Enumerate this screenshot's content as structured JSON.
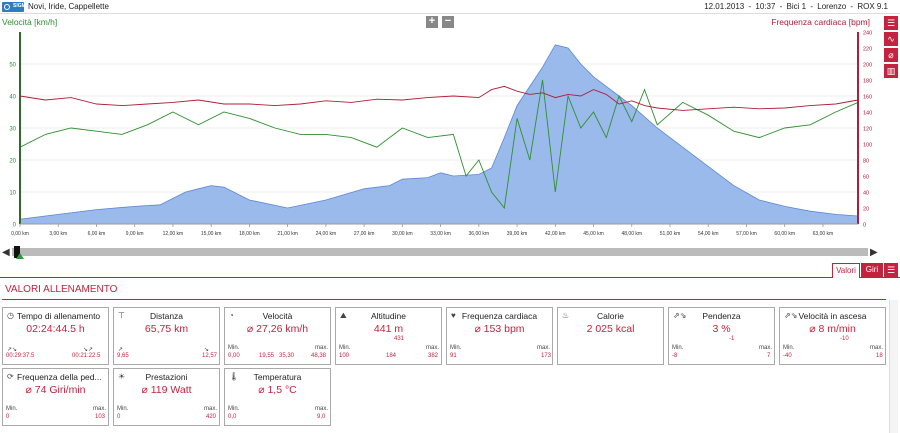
{
  "header": {
    "title": "Novi, Iride, Cappellette",
    "date": "12.01.2013",
    "time": "10:37",
    "bike": "Bici 1",
    "user": "Lorenzo",
    "device": "ROX 9.1",
    "sep": "-",
    "logo_text": "SIGMA"
  },
  "chart_data": {
    "type": "area",
    "left_axis_label": "Velocità [km/h]",
    "right_axis_label": "Frequenza cardiaca [bpm]",
    "left_ticks": [
      0,
      10,
      20,
      30,
      40,
      50
    ],
    "right_ticks": [
      0,
      20,
      40,
      60,
      80,
      100,
      120,
      140,
      160,
      180,
      200,
      220,
      240
    ],
    "x_ticks": [
      "0,00 km",
      "3,00 km",
      "6,00 km",
      "9,00 km",
      "12,00 km",
      "15,00 km",
      "18,00 km",
      "21,00 km",
      "24,00 km",
      "27,00 km",
      "30,00 km",
      "33,00 km",
      "36,00 km",
      "39,00 km",
      "42,00 km",
      "45,00 km",
      "48,00 km",
      "51,00 km",
      "54,00 km",
      "57,00 km",
      "60,00 km",
      "63,00 km"
    ],
    "xlim": [
      0,
      65.75
    ],
    "series": [
      {
        "name": "Altitudine",
        "type": "area",
        "color": "#8fb3ea",
        "x": [
          0,
          3,
          6,
          9,
          11,
          12,
          13,
          14,
          15,
          16,
          18,
          21,
          24,
          27,
          29,
          30,
          32,
          33,
          34,
          36,
          37,
          38,
          39,
          40,
          41,
          42,
          43,
          44,
          45,
          46,
          47,
          48,
          50,
          52,
          54,
          56,
          58,
          60,
          62,
          64,
          65.75
        ],
        "y": [
          15,
          30,
          45,
          55,
          60,
          80,
          100,
          110,
          120,
          115,
          75,
          50,
          75,
          110,
          120,
          140,
          145,
          160,
          150,
          155,
          175,
          270,
          370,
          430,
          490,
          560,
          550,
          500,
          460,
          430,
          400,
          370,
          300,
          240,
          180,
          120,
          75,
          55,
          40,
          30,
          25
        ]
      },
      {
        "name": "Velocità",
        "type": "line",
        "color": "#2f8f2f",
        "x": [
          0,
          2,
          4,
          6,
          8,
          10,
          12,
          14,
          16,
          18,
          20,
          22,
          24,
          26,
          28,
          30,
          32,
          34,
          35,
          36,
          37,
          38,
          39,
          40,
          41,
          42,
          43,
          44,
          45,
          46,
          47,
          48,
          49,
          50,
          52,
          54,
          56,
          58,
          60,
          62,
          64,
          65.75
        ],
        "y": [
          24,
          28,
          30,
          29,
          28,
          31,
          35,
          31,
          35,
          33,
          30,
          28,
          28,
          27,
          24,
          30,
          27,
          28,
          15,
          20,
          10,
          5,
          33,
          20,
          45,
          10,
          40,
          30,
          35,
          27,
          40,
          32,
          42,
          31,
          38,
          34,
          29,
          27,
          30,
          31,
          35,
          38
        ]
      },
      {
        "name": "Frequenza cardiaca",
        "type": "line",
        "color": "#b01d3a",
        "x": [
          0,
          2,
          4,
          6,
          8,
          10,
          12,
          14,
          16,
          18,
          20,
          22,
          24,
          26,
          28,
          30,
          32,
          34,
          36,
          37,
          38,
          39,
          40,
          41,
          42,
          43,
          44,
          45,
          46,
          47,
          48,
          49,
          50,
          52,
          54,
          56,
          58,
          60,
          62,
          64,
          65.75
        ],
        "y": [
          160,
          155,
          158,
          150,
          148,
          150,
          152,
          155,
          150,
          150,
          148,
          150,
          154,
          152,
          156,
          155,
          158,
          160,
          158,
          168,
          172,
          166,
          162,
          164,
          158,
          162,
          160,
          168,
          162,
          150,
          154,
          148,
          145,
          142,
          144,
          146,
          144,
          145,
          148,
          150,
          155
        ]
      }
    ]
  },
  "tabs": {
    "valori": "Valori",
    "giri": "Giri"
  },
  "section_title": "VALORI ALLENAMENTO",
  "stats": {
    "tempo": {
      "title": "Tempo di allenamento",
      "value": "02:24:44.5 h",
      "left": "00:29:37.5",
      "right": "00:21:22.5"
    },
    "distanza": {
      "title": "Distanza",
      "value": "65,75 km",
      "left": "9,65",
      "right": "12,57"
    },
    "velocita": {
      "title": "Velocità",
      "value": "⌀ 27,26 km/h",
      "min_label": "Min.",
      "min": "0,00",
      "mid1": "19,55",
      "mid2": "35,30",
      "max_label": "max.",
      "max": "48,38"
    },
    "altitudine": {
      "title": "Altitudine",
      "value": "441 m",
      "sub": "431",
      "min_label": "Min.",
      "min": "100",
      "avg": "184",
      "max_label": "max.",
      "max": "382"
    },
    "freq": {
      "title": "Frequenza cardiaca",
      "value": "⌀ 153 bpm",
      "min_label": "Min.",
      "min": "91",
      "max_label": "max.",
      "max": "173"
    },
    "calorie": {
      "title": "Calorie",
      "value": "2 025 kcal"
    },
    "pendenza": {
      "title": "Pendenza",
      "value": "3 %",
      "sub": "-1",
      "min_label": "Min.",
      "min": "-8",
      "max_label": "max.",
      "max": "7"
    },
    "vasc": {
      "title": "Velocità in ascesa",
      "value": "⌀ 8 m/min",
      "sub": "-10",
      "min_label": "Min.",
      "min": "-40",
      "max_label": "max.",
      "max": "18"
    },
    "pedal": {
      "title": "Frequenza della ped...",
      "value": "⌀ 74 Giri/min",
      "min_label": "Min.",
      "min": "0",
      "max_label": "max.",
      "max": "103"
    },
    "prest": {
      "title": "Prestazioni",
      "value": "⌀ 119 Watt",
      "min_label": "Min.",
      "min": "0",
      "max_label": "max.",
      "max": "420"
    },
    "temp": {
      "title": "Temperatura",
      "value": "⌀ 1,5 °C",
      "min_label": "Min.",
      "min": "0,0",
      "max_label": "max.",
      "max": "9,0"
    }
  }
}
